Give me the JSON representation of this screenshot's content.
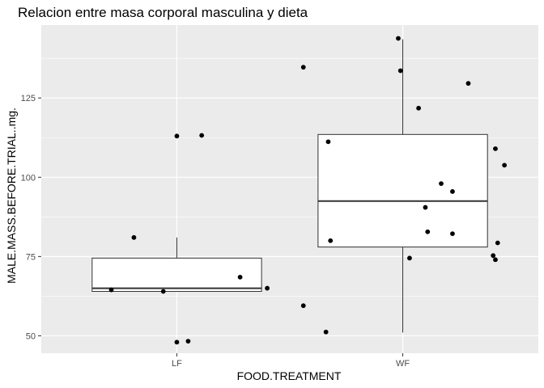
{
  "chart_data": {
    "type": "boxplot",
    "title": "Relacion entre masa corporal masculina y dieta",
    "xlabel": "FOOD.TREATMENT",
    "ylabel": "MALE.MASS.BEFORE.TRIAL..mg.",
    "categories": [
      "LF",
      "WF"
    ],
    "ylim": [
      44.5,
      148
    ],
    "yticks": [
      50,
      75,
      100,
      125
    ],
    "grid": true,
    "boxes": [
      {
        "category": "LF",
        "whisker_low": 64,
        "q1": 64,
        "median": 65,
        "q3": 74.5,
        "whisker_high": 81
      },
      {
        "category": "WF",
        "whisker_low": 51,
        "q1": 78,
        "median": 92.5,
        "q3": 113.5,
        "whisker_high": 143.5
      }
    ],
    "points": [
      {
        "category": "LF",
        "jitter": -0.29,
        "y": 64.5
      },
      {
        "category": "LF",
        "jitter": -0.19,
        "y": 81
      },
      {
        "category": "LF",
        "jitter": -0.06,
        "y": 64
      },
      {
        "category": "LF",
        "jitter": 0.0,
        "y": 113
      },
      {
        "category": "LF",
        "jitter": 0.0,
        "y": 48
      },
      {
        "category": "LF",
        "jitter": 0.05,
        "y": 48.3
      },
      {
        "category": "LF",
        "jitter": 0.11,
        "y": 113.2
      },
      {
        "category": "LF",
        "jitter": 0.28,
        "y": 68.5
      },
      {
        "category": "LF",
        "jitter": 0.4,
        "y": 65
      },
      {
        "category": "WF",
        "jitter": -0.44,
        "y": 134.7
      },
      {
        "category": "WF",
        "jitter": -0.44,
        "y": 59.5
      },
      {
        "category": "WF",
        "jitter": -0.34,
        "y": 51.2
      },
      {
        "category": "WF",
        "jitter": -0.33,
        "y": 111.2
      },
      {
        "category": "WF",
        "jitter": -0.32,
        "y": 80
      },
      {
        "category": "WF",
        "jitter": -0.02,
        "y": 143.8
      },
      {
        "category": "WF",
        "jitter": -0.01,
        "y": 133.6
      },
      {
        "category": "WF",
        "jitter": 0.03,
        "y": 74.5
      },
      {
        "category": "WF",
        "jitter": 0.07,
        "y": 121.8
      },
      {
        "category": "WF",
        "jitter": 0.1,
        "y": 90.5
      },
      {
        "category": "WF",
        "jitter": 0.11,
        "y": 82.8
      },
      {
        "category": "WF",
        "jitter": 0.17,
        "y": 98
      },
      {
        "category": "WF",
        "jitter": 0.22,
        "y": 95.5
      },
      {
        "category": "WF",
        "jitter": 0.22,
        "y": 82.2
      },
      {
        "category": "WF",
        "jitter": 0.29,
        "y": 129.6
      },
      {
        "category": "WF",
        "jitter": 0.41,
        "y": 109
      },
      {
        "category": "WF",
        "jitter": 0.4,
        "y": 75.3
      },
      {
        "category": "WF",
        "jitter": 0.41,
        "y": 74
      },
      {
        "category": "WF",
        "jitter": 0.42,
        "y": 79.3
      },
      {
        "category": "WF",
        "jitter": 0.45,
        "y": 103.8
      }
    ]
  }
}
